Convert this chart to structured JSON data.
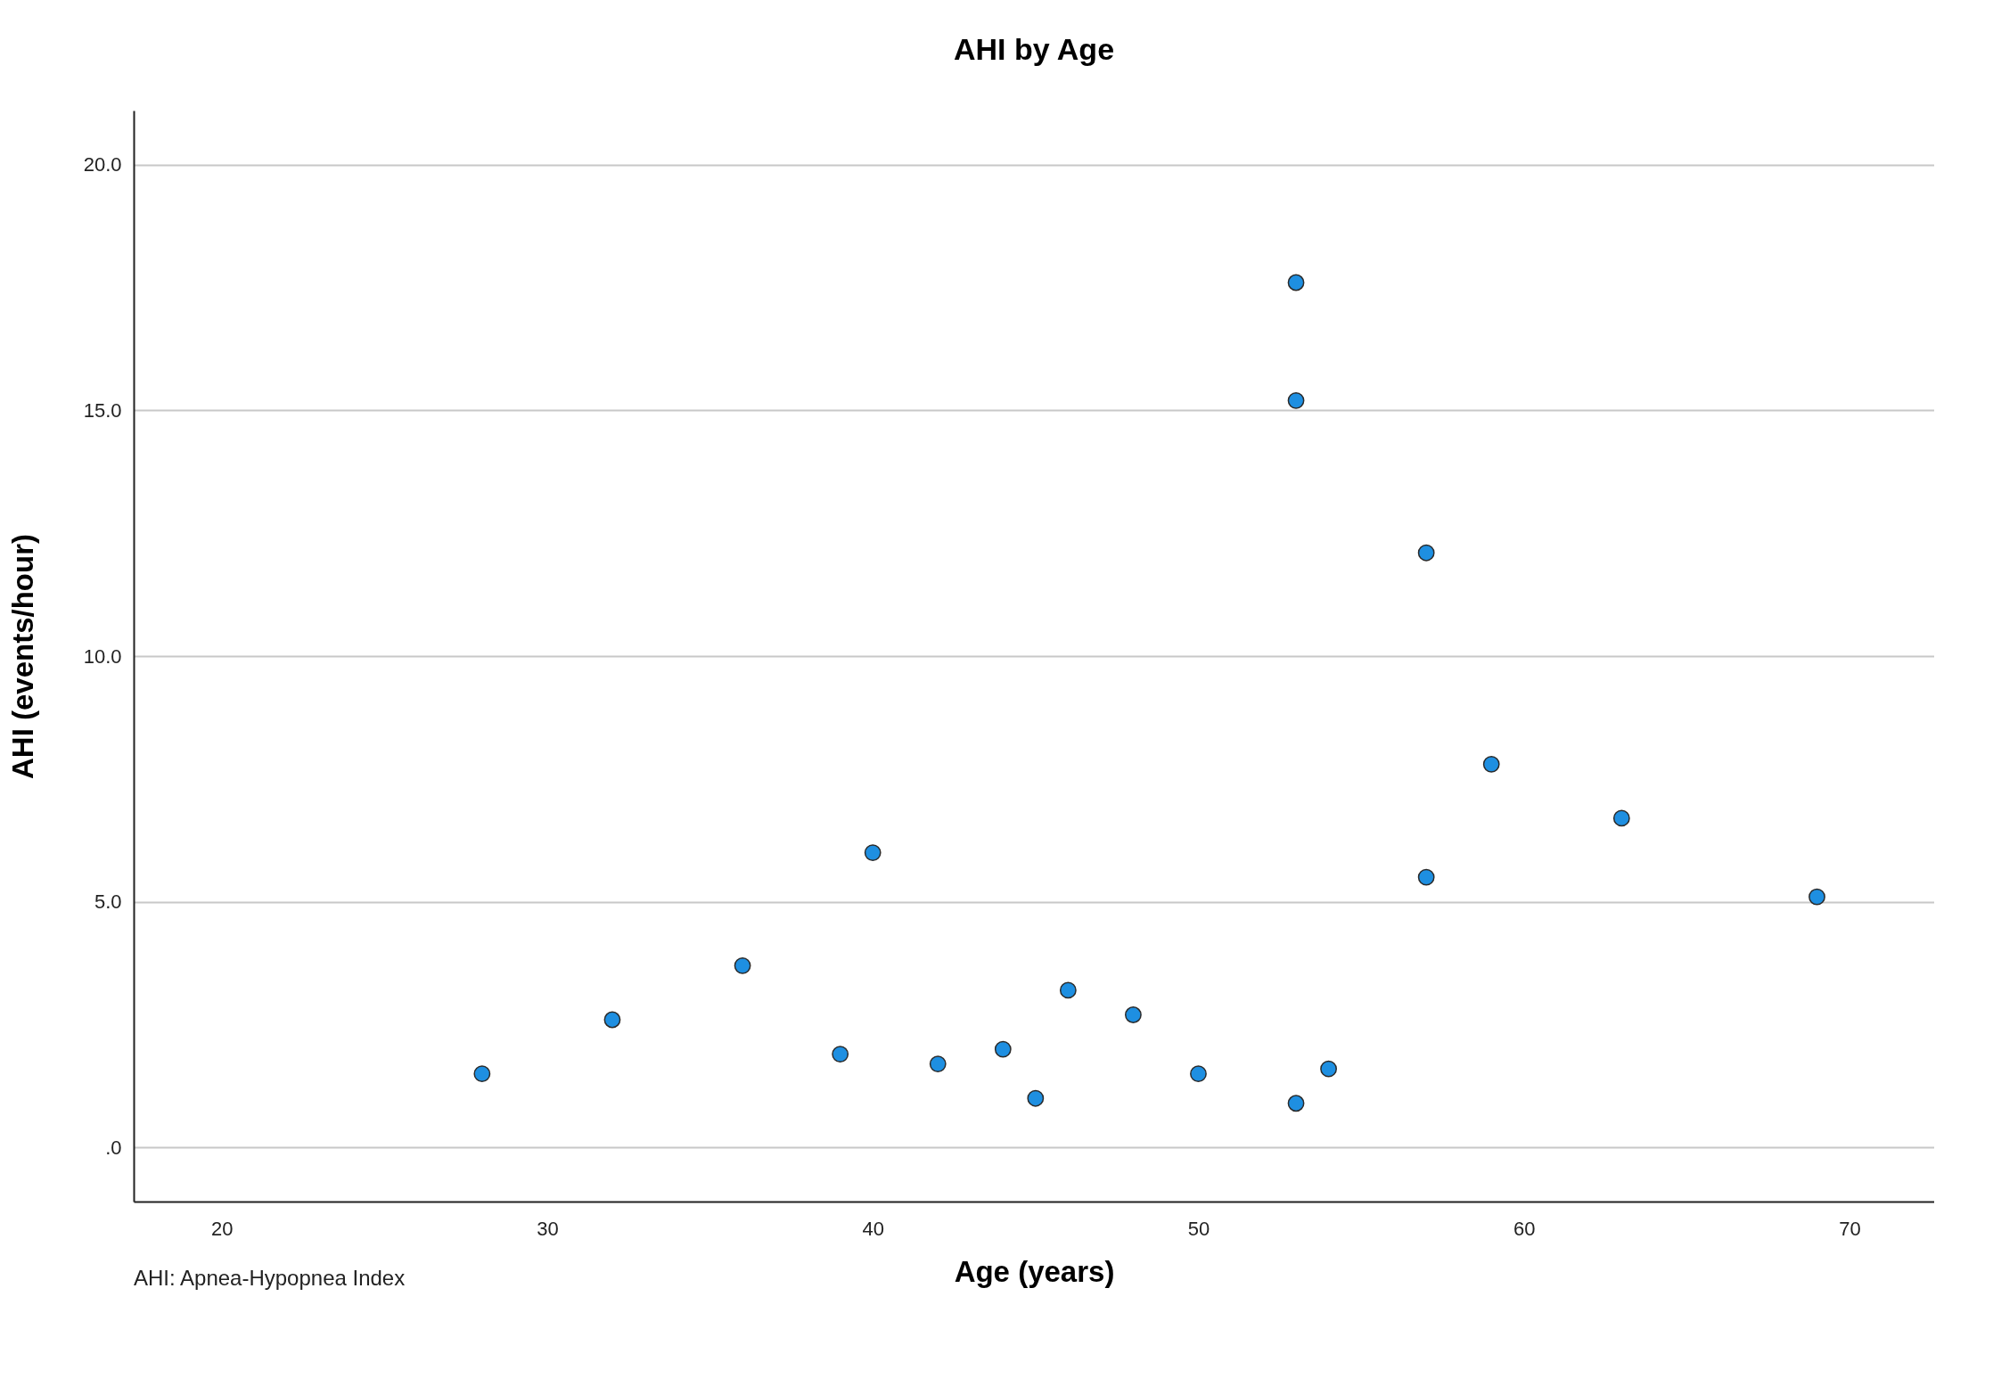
{
  "chart_data": {
    "type": "scatter",
    "title": "AHI by Age",
    "xlabel": "Age (years)",
    "ylabel": "AHI (events/hour)",
    "annotations": [
      "AHI: Apnea-Hypopnea Index"
    ],
    "series": [
      {
        "color": "#1e8fe1",
        "x": [
          28,
          32,
          36,
          39,
          40,
          42,
          44,
          45,
          46,
          48,
          50,
          53,
          53,
          53,
          54,
          57,
          57,
          59,
          63,
          69
        ],
        "values": [
          1.5,
          2.6,
          3.7,
          1.9,
          6.0,
          1.7,
          2.0,
          1.0,
          3.2,
          2.7,
          1.5,
          17.6,
          15.2,
          0.9,
          1.6,
          12.1,
          5.5,
          7.8,
          6.7,
          5.1
        ]
      }
    ],
    "xlim": [
      17.3,
      72.6
    ],
    "xticks": [
      20,
      30,
      40,
      50,
      60,
      70
    ],
    "ylim": [
      -1.1,
      21.1
    ],
    "yticks": [
      {
        "value": 0,
        "label": ".0"
      },
      {
        "value": 5,
        "label": "5.0"
      },
      {
        "value": 10,
        "label": "10.0"
      },
      {
        "value": 15,
        "label": "15.0"
      },
      {
        "value": 20,
        "label": "20.0"
      }
    ],
    "grid": "y",
    "marker": "circle"
  }
}
